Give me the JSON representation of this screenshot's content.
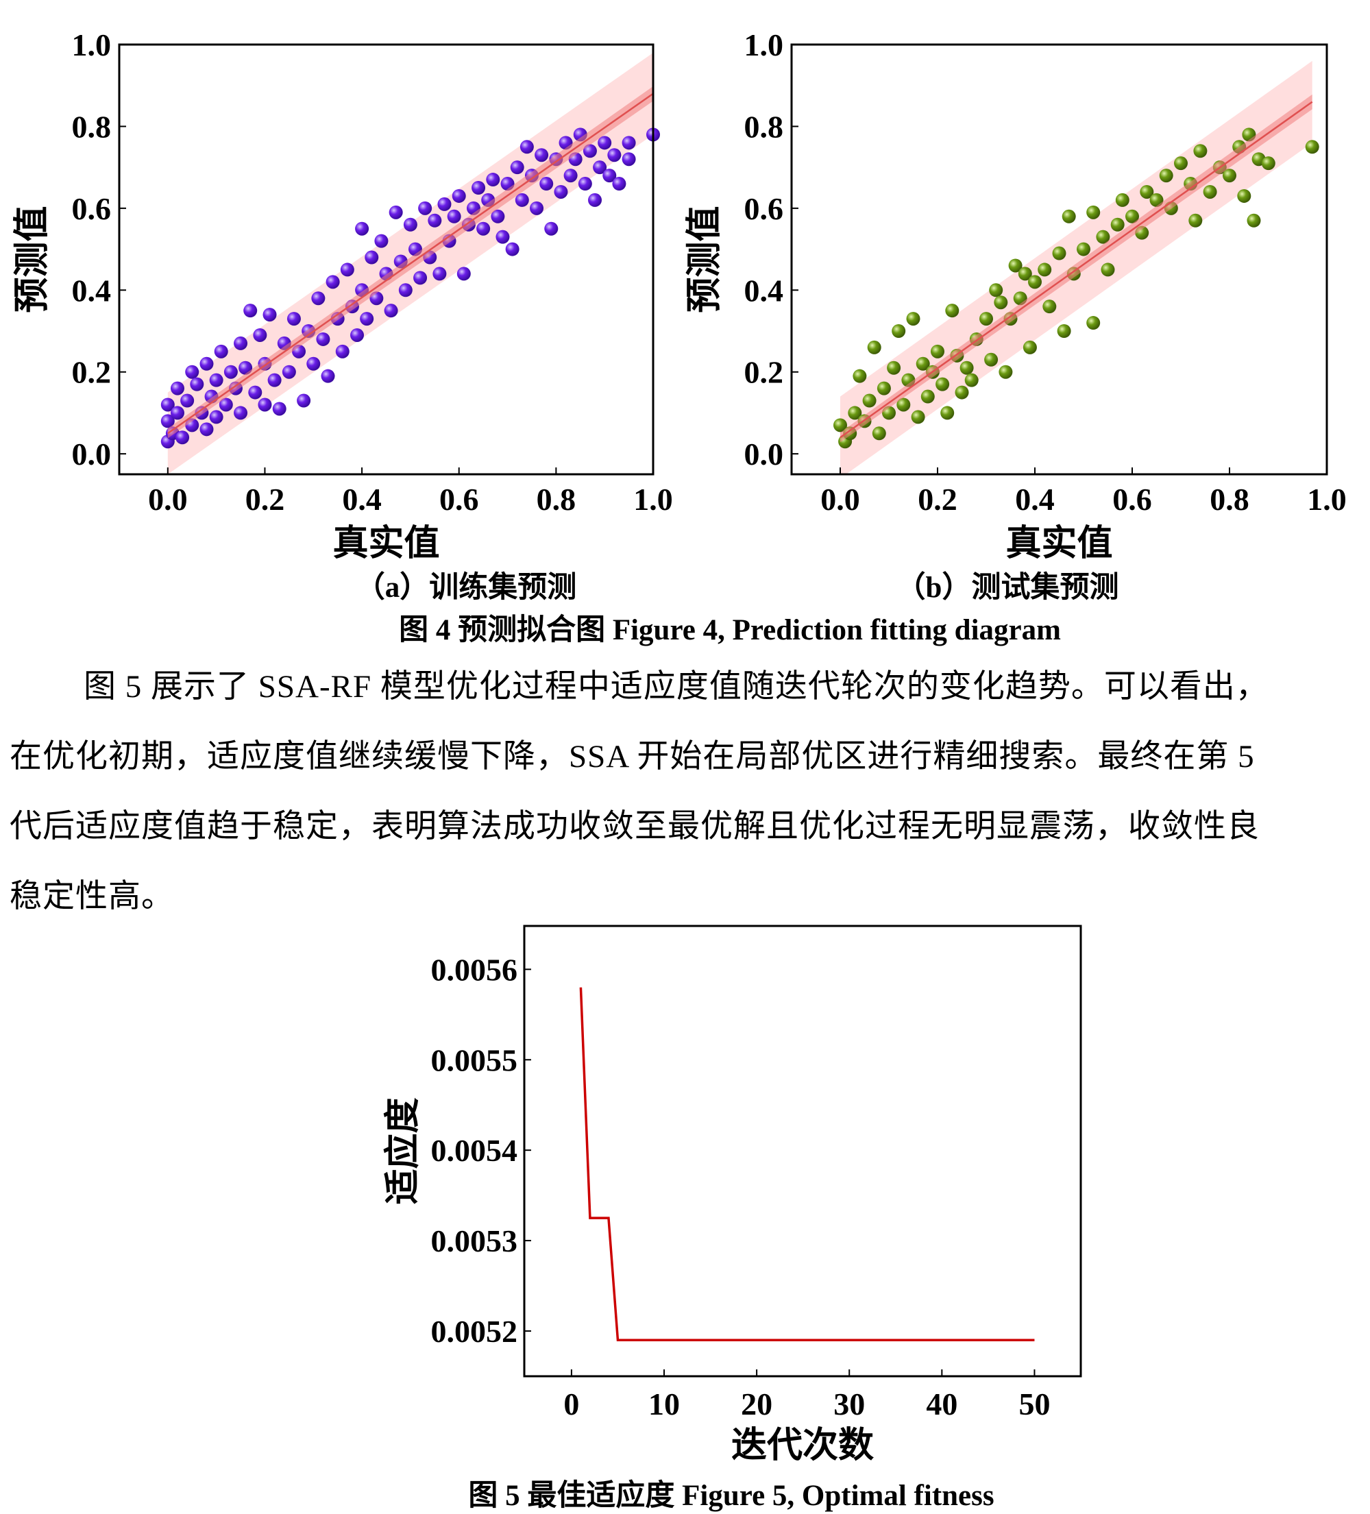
{
  "figure4": {
    "caption": "图 4 预测拟合图 Figure 4, Prediction fitting diagram",
    "sub_a": "（a）训练集预测",
    "sub_b": "（b）测试集预测"
  },
  "paragraph": [
    "图 5 展示了 SSA-RF 模型优化过程中适应度值随迭代轮次的变化趋势。可以看出，",
    "在优化初期，适应度值继续缓慢下降，SSA 开始在局部优区进行精细搜索。最终在第 5",
    "代后适应度值趋于稳定，表明算法成功收敛至最优解且优化过程无明显震荡，收敛性良",
    "稳定性高。"
  ],
  "figure5": {
    "caption": "图 5 最佳适应度 Figure 5, Optimal fitness"
  },
  "chart_data": [
    {
      "type": "scatter",
      "name": "train",
      "xlabel": "真实值",
      "ylabel": "预测值",
      "xlim": [
        -0.1,
        1.0
      ],
      "ylim": [
        -0.05,
        1.0
      ],
      "xticks": [
        "0.0",
        "0.2",
        "0.4",
        "0.6",
        "0.8",
        "1.0"
      ],
      "yticks": [
        "0.0",
        "0.2",
        "0.4",
        "0.6",
        "0.8",
        "1.0"
      ],
      "color": "#6a1ee8",
      "fit_line": {
        "x": [
          0.0,
          1.0
        ],
        "y": [
          0.05,
          0.88
        ],
        "color": "#e05050"
      },
      "prediction_band": 0.1,
      "points": [
        [
          0.0,
          0.03
        ],
        [
          0.0,
          0.08
        ],
        [
          0.0,
          0.12
        ],
        [
          0.01,
          0.05
        ],
        [
          0.02,
          0.1
        ],
        [
          0.02,
          0.16
        ],
        [
          0.03,
          0.04
        ],
        [
          0.04,
          0.13
        ],
        [
          0.05,
          0.2
        ],
        [
          0.05,
          0.07
        ],
        [
          0.06,
          0.17
        ],
        [
          0.07,
          0.1
        ],
        [
          0.08,
          0.22
        ],
        [
          0.08,
          0.06
        ],
        [
          0.09,
          0.14
        ],
        [
          0.1,
          0.18
        ],
        [
          0.1,
          0.09
        ],
        [
          0.11,
          0.25
        ],
        [
          0.12,
          0.12
        ],
        [
          0.13,
          0.2
        ],
        [
          0.14,
          0.16
        ],
        [
          0.15,
          0.27
        ],
        [
          0.15,
          0.1
        ],
        [
          0.16,
          0.21
        ],
        [
          0.17,
          0.35
        ],
        [
          0.18,
          0.15
        ],
        [
          0.19,
          0.29
        ],
        [
          0.2,
          0.12
        ],
        [
          0.2,
          0.22
        ],
        [
          0.21,
          0.34
        ],
        [
          0.22,
          0.18
        ],
        [
          0.23,
          0.11
        ],
        [
          0.24,
          0.27
        ],
        [
          0.25,
          0.2
        ],
        [
          0.26,
          0.33
        ],
        [
          0.27,
          0.25
        ],
        [
          0.28,
          0.13
        ],
        [
          0.29,
          0.3
        ],
        [
          0.3,
          0.22
        ],
        [
          0.31,
          0.38
        ],
        [
          0.32,
          0.28
        ],
        [
          0.33,
          0.19
        ],
        [
          0.34,
          0.42
        ],
        [
          0.35,
          0.33
        ],
        [
          0.36,
          0.25
        ],
        [
          0.37,
          0.45
        ],
        [
          0.38,
          0.36
        ],
        [
          0.39,
          0.29
        ],
        [
          0.4,
          0.55
        ],
        [
          0.4,
          0.4
        ],
        [
          0.41,
          0.33
        ],
        [
          0.42,
          0.48
        ],
        [
          0.43,
          0.38
        ],
        [
          0.44,
          0.52
        ],
        [
          0.45,
          0.44
        ],
        [
          0.46,
          0.35
        ],
        [
          0.47,
          0.59
        ],
        [
          0.48,
          0.47
        ],
        [
          0.49,
          0.4
        ],
        [
          0.5,
          0.56
        ],
        [
          0.51,
          0.5
        ],
        [
          0.52,
          0.43
        ],
        [
          0.53,
          0.6
        ],
        [
          0.54,
          0.48
        ],
        [
          0.55,
          0.57
        ],
        [
          0.56,
          0.44
        ],
        [
          0.57,
          0.61
        ],
        [
          0.58,
          0.52
        ],
        [
          0.59,
          0.58
        ],
        [
          0.6,
          0.63
        ],
        [
          0.61,
          0.44
        ],
        [
          0.62,
          0.56
        ],
        [
          0.63,
          0.6
        ],
        [
          0.64,
          0.65
        ],
        [
          0.65,
          0.55
        ],
        [
          0.66,
          0.62
        ],
        [
          0.67,
          0.67
        ],
        [
          0.68,
          0.58
        ],
        [
          0.69,
          0.53
        ],
        [
          0.7,
          0.66
        ],
        [
          0.71,
          0.5
        ],
        [
          0.72,
          0.7
        ],
        [
          0.73,
          0.62
        ],
        [
          0.74,
          0.75
        ],
        [
          0.75,
          0.68
        ],
        [
          0.76,
          0.6
        ],
        [
          0.77,
          0.73
        ],
        [
          0.78,
          0.66
        ],
        [
          0.79,
          0.55
        ],
        [
          0.8,
          0.72
        ],
        [
          0.81,
          0.64
        ],
        [
          0.82,
          0.76
        ],
        [
          0.83,
          0.68
        ],
        [
          0.84,
          0.72
        ],
        [
          0.85,
          0.78
        ],
        [
          0.86,
          0.66
        ],
        [
          0.87,
          0.74
        ],
        [
          0.88,
          0.62
        ],
        [
          0.89,
          0.7
        ],
        [
          0.9,
          0.76
        ],
        [
          0.91,
          0.68
        ],
        [
          0.92,
          0.73
        ],
        [
          0.93,
          0.66
        ],
        [
          0.95,
          0.72
        ],
        [
          0.95,
          0.76
        ],
        [
          1.0,
          0.78
        ]
      ]
    },
    {
      "type": "scatter",
      "name": "test",
      "xlabel": "真实值",
      "ylabel": "预测值",
      "xlim": [
        -0.1,
        1.0
      ],
      "ylim": [
        -0.05,
        1.0
      ],
      "xticks": [
        "0.0",
        "0.2",
        "0.4",
        "0.6",
        "0.8",
        "1.0"
      ],
      "yticks": [
        "0.0",
        "0.2",
        "0.4",
        "0.6",
        "0.8",
        "1.0"
      ],
      "color": "#6b9a12",
      "fit_line": {
        "x": [
          0.0,
          0.97
        ],
        "y": [
          0.04,
          0.86
        ],
        "color": "#e05050"
      },
      "prediction_band": 0.1,
      "points": [
        [
          0.0,
          0.07
        ],
        [
          0.01,
          0.03
        ],
        [
          0.02,
          0.05
        ],
        [
          0.03,
          0.1
        ],
        [
          0.04,
          0.19
        ],
        [
          0.05,
          0.08
        ],
        [
          0.06,
          0.13
        ],
        [
          0.07,
          0.26
        ],
        [
          0.08,
          0.05
        ],
        [
          0.09,
          0.16
        ],
        [
          0.1,
          0.1
        ],
        [
          0.11,
          0.21
        ],
        [
          0.12,
          0.3
        ],
        [
          0.13,
          0.12
        ],
        [
          0.14,
          0.18
        ],
        [
          0.15,
          0.33
        ],
        [
          0.16,
          0.09
        ],
        [
          0.17,
          0.22
        ],
        [
          0.18,
          0.14
        ],
        [
          0.19,
          0.2
        ],
        [
          0.2,
          0.25
        ],
        [
          0.21,
          0.17
        ],
        [
          0.22,
          0.1
        ],
        [
          0.23,
          0.35
        ],
        [
          0.24,
          0.24
        ],
        [
          0.25,
          0.15
        ],
        [
          0.26,
          0.21
        ],
        [
          0.27,
          0.18
        ],
        [
          0.28,
          0.28
        ],
        [
          0.3,
          0.33
        ],
        [
          0.31,
          0.23
        ],
        [
          0.32,
          0.4
        ],
        [
          0.33,
          0.37
        ],
        [
          0.34,
          0.2
        ],
        [
          0.35,
          0.33
        ],
        [
          0.36,
          0.46
        ],
        [
          0.37,
          0.38
        ],
        [
          0.38,
          0.44
        ],
        [
          0.39,
          0.26
        ],
        [
          0.4,
          0.42
        ],
        [
          0.42,
          0.45
        ],
        [
          0.43,
          0.36
        ],
        [
          0.45,
          0.49
        ],
        [
          0.46,
          0.3
        ],
        [
          0.47,
          0.58
        ],
        [
          0.48,
          0.44
        ],
        [
          0.5,
          0.5
        ],
        [
          0.52,
          0.59
        ],
        [
          0.52,
          0.32
        ],
        [
          0.54,
          0.53
        ],
        [
          0.55,
          0.45
        ],
        [
          0.57,
          0.56
        ],
        [
          0.58,
          0.62
        ],
        [
          0.6,
          0.58
        ],
        [
          0.62,
          0.54
        ],
        [
          0.63,
          0.64
        ],
        [
          0.65,
          0.62
        ],
        [
          0.67,
          0.68
        ],
        [
          0.68,
          0.6
        ],
        [
          0.7,
          0.71
        ],
        [
          0.72,
          0.66
        ],
        [
          0.73,
          0.57
        ],
        [
          0.74,
          0.74
        ],
        [
          0.76,
          0.64
        ],
        [
          0.78,
          0.7
        ],
        [
          0.8,
          0.68
        ],
        [
          0.82,
          0.75
        ],
        [
          0.83,
          0.63
        ],
        [
          0.84,
          0.78
        ],
        [
          0.85,
          0.57
        ],
        [
          0.86,
          0.72
        ],
        [
          0.88,
          0.71
        ],
        [
          0.97,
          0.75
        ]
      ]
    },
    {
      "type": "line",
      "name": "fitness",
      "xlabel": "迭代次数",
      "ylabel": "适应度",
      "xlim": [
        -5.1,
        55
      ],
      "ylim": [
        0.00515,
        0.005648
      ],
      "xticks": [
        0,
        10,
        20,
        30,
        40,
        50
      ],
      "yticks": [
        "0.0052",
        "0.0053",
        "0.0054",
        "0.0055",
        "0.0056"
      ],
      "color": "#cc0000",
      "x": [
        1,
        2,
        4,
        5,
        50
      ],
      "y": [
        0.00558,
        0.005325,
        0.005325,
        0.00519,
        0.00519
      ]
    }
  ]
}
